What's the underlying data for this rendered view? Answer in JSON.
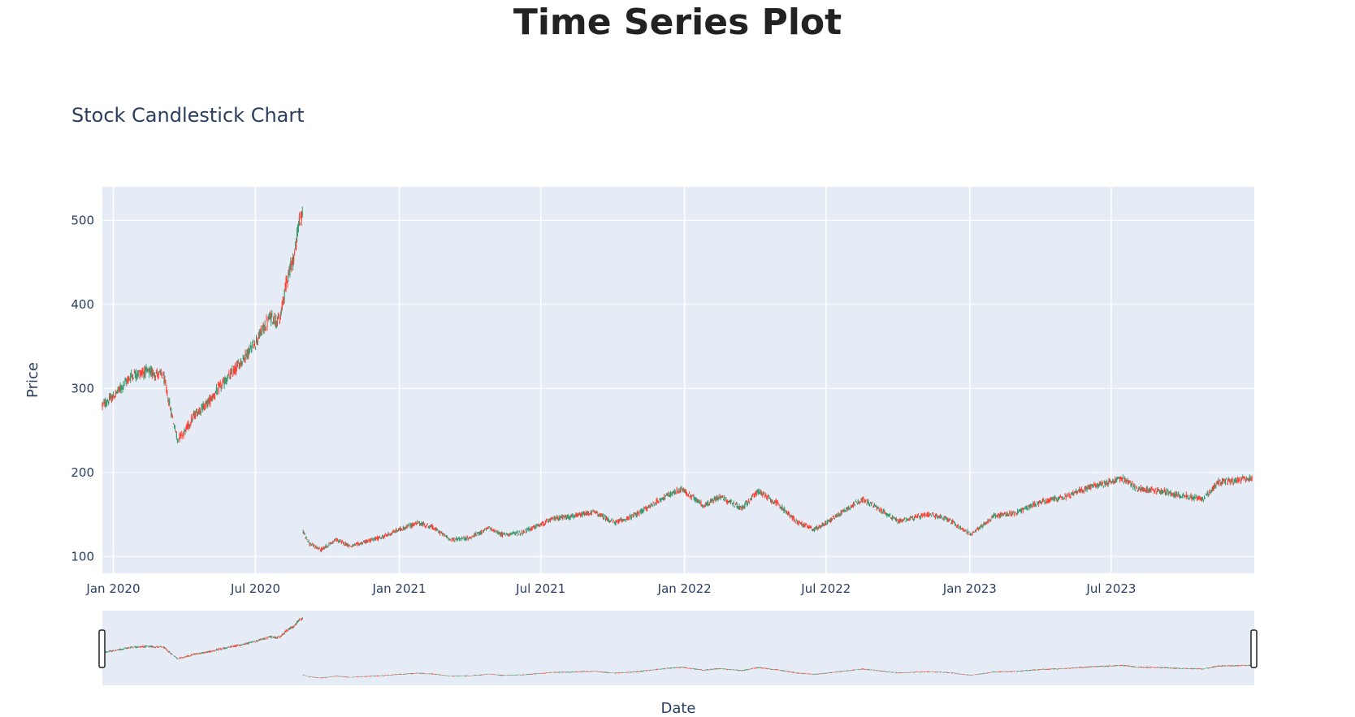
{
  "page_title": "Time Series Plot",
  "chart_data": {
    "type": "candlestick",
    "title": "Stock Candlestick Chart",
    "xlabel": "Date",
    "ylabel": "Price",
    "x_range": [
      "2019-12-18",
      "2023-12-31"
    ],
    "ylim": [
      80,
      540
    ],
    "y_ticks": [
      100,
      200,
      300,
      400,
      500
    ],
    "x_ticks": [
      {
        "date": "2020-01-01",
        "label": "Jan 2020"
      },
      {
        "date": "2020-07-01",
        "label": "Jul 2020"
      },
      {
        "date": "2021-01-01",
        "label": "Jan 2021"
      },
      {
        "date": "2021-07-01",
        "label": "Jul 2021"
      },
      {
        "date": "2022-01-01",
        "label": "Jan 2022"
      },
      {
        "date": "2022-07-01",
        "label": "Jul 2022"
      },
      {
        "date": "2023-01-01",
        "label": "Jan 2023"
      },
      {
        "date": "2023-07-01",
        "label": "Jul 2023"
      }
    ],
    "grid": true,
    "rangeslider": true,
    "increasing_color": "#3d9970",
    "decreasing_color": "#ff4136",
    "price_path": [
      [
        "2019-12-18",
        280
      ],
      [
        "2020-01-01",
        290
      ],
      [
        "2020-01-15",
        305
      ],
      [
        "2020-01-25",
        316
      ],
      [
        "2020-02-10",
        320
      ],
      [
        "2020-02-25",
        318
      ],
      [
        "2020-03-05",
        315
      ],
      [
        "2020-03-12",
        285
      ],
      [
        "2020-03-23",
        240
      ],
      [
        "2020-04-01",
        248
      ],
      [
        "2020-04-15",
        270
      ],
      [
        "2020-05-01",
        283
      ],
      [
        "2020-05-15",
        300
      ],
      [
        "2020-06-01",
        318
      ],
      [
        "2020-06-15",
        335
      ],
      [
        "2020-07-01",
        355
      ],
      [
        "2020-07-20",
        385
      ],
      [
        "2020-08-01",
        380
      ],
      [
        "2020-08-10",
        430
      ],
      [
        "2020-08-20",
        460
      ],
      [
        "2020-08-26",
        500
      ],
      [
        "2020-08-31",
        505
      ],
      [
        "2020-08-31",
        130
      ],
      [
        "2020-09-08",
        115
      ],
      [
        "2020-09-23",
        108
      ],
      [
        "2020-10-12",
        120
      ],
      [
        "2020-11-01",
        112
      ],
      [
        "2020-11-20",
        118
      ],
      [
        "2020-12-10",
        123
      ],
      [
        "2021-01-01",
        132
      ],
      [
        "2021-01-25",
        140
      ],
      [
        "2021-02-12",
        135
      ],
      [
        "2021-03-08",
        120
      ],
      [
        "2021-04-01",
        122
      ],
      [
        "2021-04-26",
        134
      ],
      [
        "2021-05-12",
        126
      ],
      [
        "2021-06-05",
        128
      ],
      [
        "2021-07-01",
        138
      ],
      [
        "2021-07-20",
        146
      ],
      [
        "2021-08-15",
        148
      ],
      [
        "2021-09-07",
        153
      ],
      [
        "2021-10-04",
        140
      ],
      [
        "2021-11-01",
        150
      ],
      [
        "2021-12-01",
        168
      ],
      [
        "2021-12-28",
        180
      ],
      [
        "2022-01-27",
        160
      ],
      [
        "2022-02-15",
        172
      ],
      [
        "2022-03-15",
        157
      ],
      [
        "2022-04-05",
        178
      ],
      [
        "2022-05-01",
        162
      ],
      [
        "2022-05-24",
        142
      ],
      [
        "2022-06-16",
        132
      ],
      [
        "2022-07-01",
        140
      ],
      [
        "2022-08-15",
        168
      ],
      [
        "2022-09-01",
        160
      ],
      [
        "2022-10-01",
        142
      ],
      [
        "2022-11-10",
        150
      ],
      [
        "2022-12-01",
        146
      ],
      [
        "2023-01-03",
        126
      ],
      [
        "2023-02-01",
        148
      ],
      [
        "2023-03-01",
        152
      ],
      [
        "2023-04-01",
        165
      ],
      [
        "2023-05-01",
        170
      ],
      [
        "2023-06-01",
        182
      ],
      [
        "2023-07-15",
        193
      ],
      [
        "2023-08-05",
        180
      ],
      [
        "2023-09-01",
        178
      ],
      [
        "2023-10-26",
        168
      ],
      [
        "2023-11-15",
        188
      ],
      [
        "2023-12-29",
        193
      ]
    ]
  }
}
